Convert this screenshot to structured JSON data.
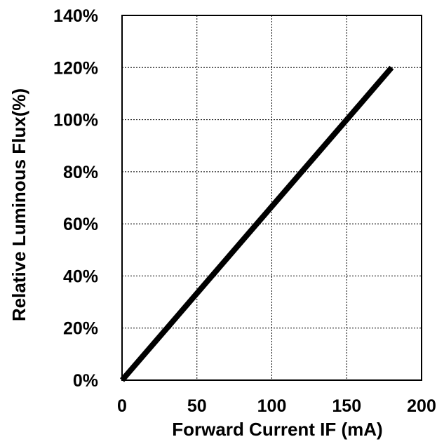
{
  "chart_data": {
    "type": "line",
    "title": "",
    "xlabel": "Forward Current IF (mA)",
    "ylabel": "Relative Luminous Flux(%)",
    "xlim": [
      0,
      200
    ],
    "ylim": [
      0,
      140
    ],
    "x_ticks": [
      0,
      50,
      100,
      150,
      200
    ],
    "y_ticks": [
      0,
      20,
      40,
      60,
      80,
      100,
      120,
      140
    ],
    "x_tick_labels": [
      "0",
      "50",
      "100",
      "150",
      "200"
    ],
    "y_tick_labels": [
      "0%",
      "20%",
      "40%",
      "60%",
      "80%",
      "100%",
      "120%",
      "140%"
    ],
    "grid": true,
    "grid_style": "dotted",
    "legend": "none",
    "series": [
      {
        "color": "#000000",
        "x": [
          0,
          30,
          60,
          90,
          120,
          150,
          180
        ],
        "y": [
          0,
          20,
          40,
          60,
          80,
          100,
          120
        ]
      }
    ]
  }
}
